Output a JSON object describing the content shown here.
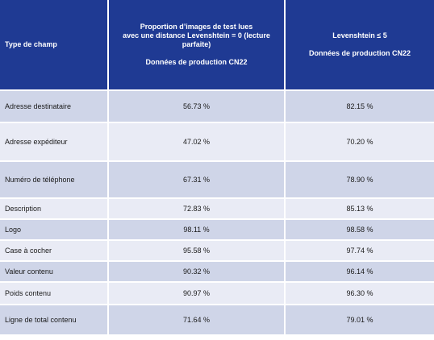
{
  "header": {
    "col1": "Type de champ",
    "col2_lines": [
      "Proportion d’images de test lues",
      "avec une distance Levenshtein = 0 (lecture",
      "parfaite)"
    ],
    "col2_sub": "Données de production CN22",
    "col3_line": "Levenshtein ≤ 5",
    "col3_sub": "Données de production CN22"
  },
  "rows": [
    {
      "label": "Adresse destinataire",
      "exact": "56.73 %",
      "lev5": "82.15 %"
    },
    {
      "label": "Adresse expéditeur",
      "exact": "47.02 %",
      "lev5": "70.20 %"
    },
    {
      "label": "Numéro de téléphone",
      "exact": "67.31 %",
      "lev5": "78.90 %"
    },
    {
      "label": "Description",
      "exact": "72.83 %",
      "lev5": "85.13 %"
    },
    {
      "label": "Logo",
      "exact": "98.11 %",
      "lev5": "98.58 %"
    },
    {
      "label": "Case à cocher",
      "exact": "95.58 %",
      "lev5": "97.74 %"
    },
    {
      "label": "Valeur contenu",
      "exact": "90.32 %",
      "lev5": "96.14 %"
    },
    {
      "label": "Poids contenu",
      "exact": "90.97 %",
      "lev5": "96.30 %"
    },
    {
      "label": "Ligne de total contenu",
      "exact": "71.64 %",
      "lev5": "79.01 %"
    }
  ]
}
